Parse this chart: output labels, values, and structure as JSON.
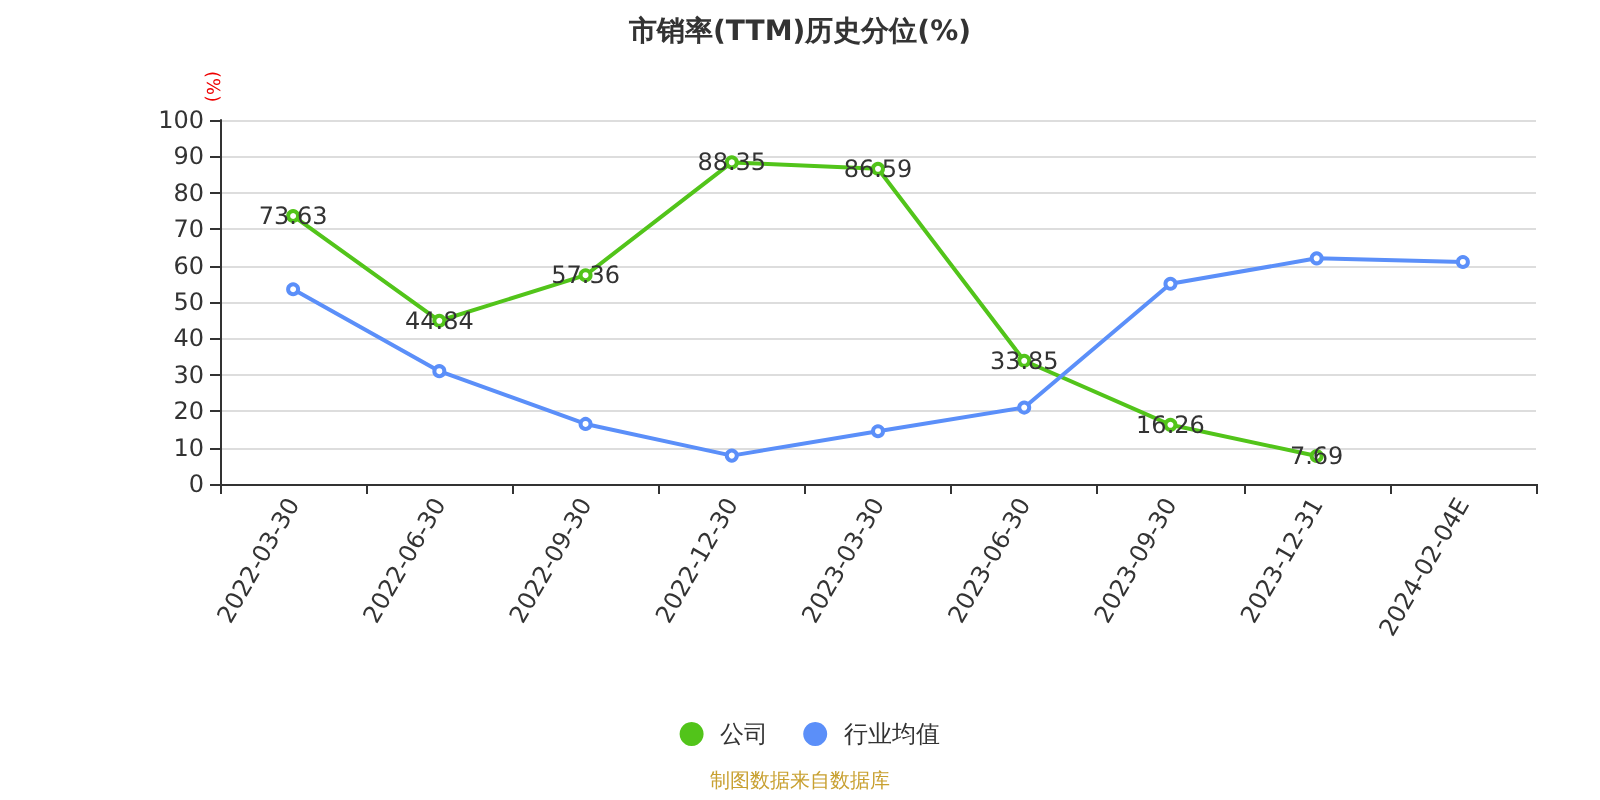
{
  "chart_data": {
    "type": "line",
    "title": "市销率(TTM)历史分位(%)",
    "ylabel": "(%)",
    "categories": [
      "2022-03-30",
      "2022-06-30",
      "2022-09-30",
      "2022-12-30",
      "2023-03-30",
      "2023-06-30",
      "2023-09-30",
      "2023-12-31",
      "2024-02-04E"
    ],
    "series": [
      {
        "name": "公司",
        "color": "#52c41a",
        "values": [
          73.63,
          44.84,
          57.36,
          88.35,
          86.59,
          33.85,
          16.26,
          7.69,
          null
        ],
        "value_labels": [
          "73.63",
          "44.84",
          "57.36",
          "88.35",
          "86.59",
          "33.85",
          "16.26",
          "7.69",
          null
        ]
      },
      {
        "name": "行业均值",
        "color": "#5b8ff9",
        "values": [
          53.5,
          31,
          16.5,
          7.8,
          14.5,
          21,
          55,
          62,
          61
        ]
      }
    ],
    "ylim": [
      0,
      100
    ],
    "yticks": [
      0,
      10,
      20,
      30,
      40,
      50,
      60,
      70,
      80,
      90,
      100
    ],
    "grid": "y",
    "legend": "bottom",
    "marker": "circle",
    "line_style": "solid",
    "annotations": [
      "制图数据来自数据库"
    ]
  }
}
